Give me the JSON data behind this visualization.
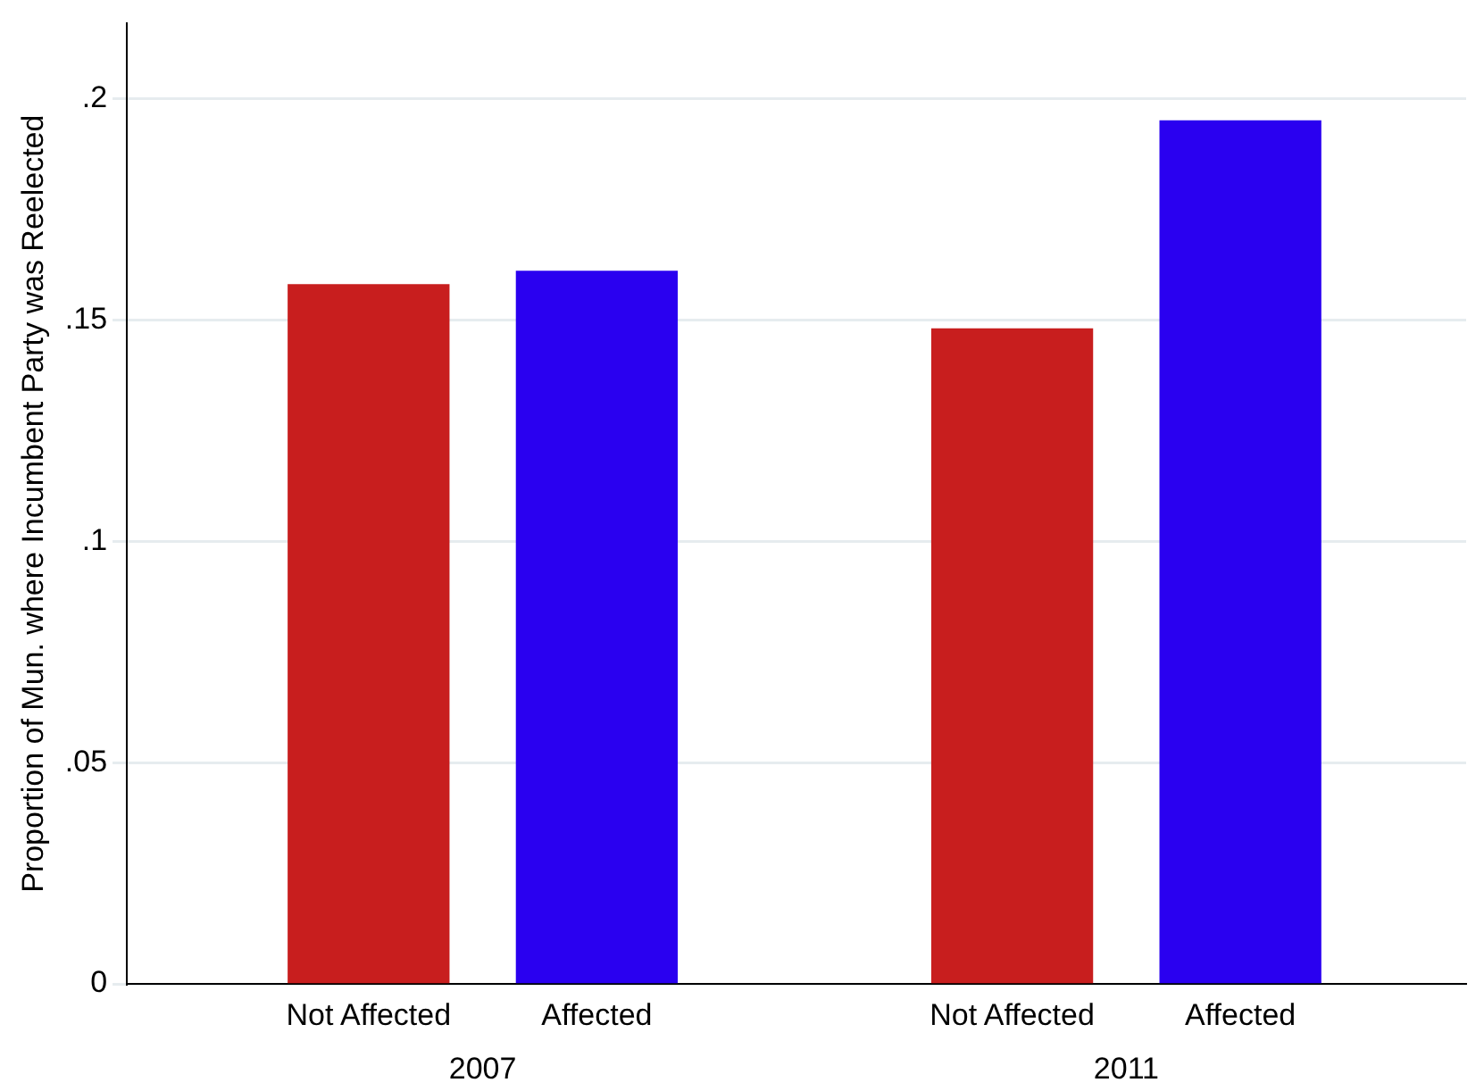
{
  "chart_data": {
    "type": "bar",
    "categories": [
      "Not Affected",
      "Affected",
      "Not Affected",
      "Affected"
    ],
    "values": [
      0.158,
      0.161,
      0.148,
      0.195
    ],
    "colors": [
      "#c81e1e",
      "#2a00f0",
      "#c81e1e",
      "#2a00f0"
    ],
    "ylabel": "Proportion of Mun. where Incumbent Party was Reelected",
    "ylim": [
      0,
      0.217
    ],
    "yticks": [
      0,
      {
        "value": 0.05,
        "label": ".05"
      },
      {
        "value": 0.1,
        "label": ".1"
      },
      {
        "value": 0.15,
        "label": ".15"
      },
      {
        "value": 0.2,
        "label": ".2"
      }
    ],
    "annotations": [
      "2007",
      "2011"
    ],
    "grid": "y",
    "legend": false
  }
}
